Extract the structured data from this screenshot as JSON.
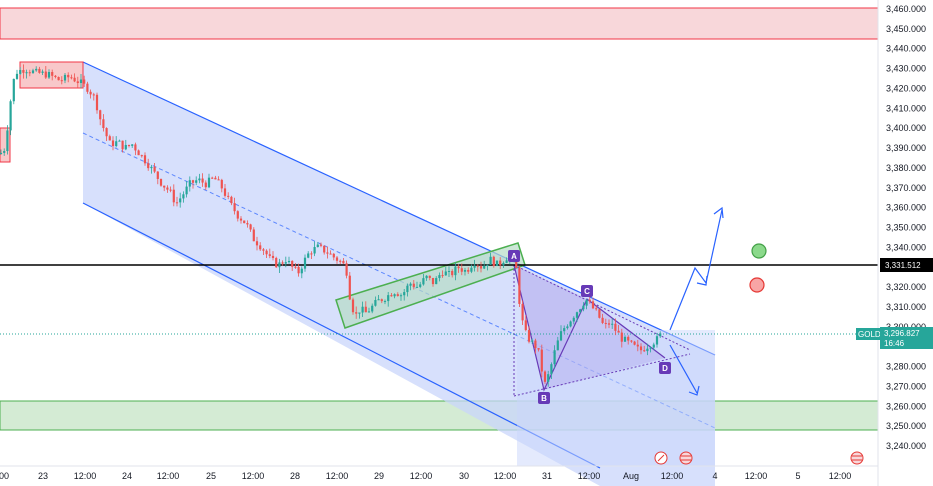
{
  "chart_data": {
    "type": "candlestick",
    "symbol": "GOLD",
    "last_price": "3,296.827",
    "countdown": "16:46",
    "hline_price": "3,331.512",
    "ylim": [
      3233,
      3464
    ],
    "y_ticks": [
      3460,
      3450,
      3440,
      3430,
      3420,
      3410,
      3400,
      3390,
      3380,
      3370,
      3360,
      3350,
      3340,
      3320,
      3310,
      3300,
      3280,
      3270,
      3260,
      3250,
      3240
    ],
    "x_ticks": [
      "00",
      "23",
      "12:00",
      "24",
      "12:00",
      "25",
      "12:00",
      "28",
      "12:00",
      "29",
      "12:00",
      "30",
      "12:00",
      "31",
      "12:00",
      "Aug",
      "12:00",
      "4",
      "12:00",
      "5",
      "12:00"
    ],
    "resistance_zone": [
      3446,
      3461
    ],
    "support_zone": [
      3248,
      3263
    ],
    "pattern_labels": [
      "A",
      "B",
      "C",
      "D"
    ],
    "colors": {
      "up": "#26a69a",
      "down": "#ef5350",
      "channel": "#2962ff",
      "support": "#4caf50",
      "resistance": "#f23645"
    },
    "close_path": [
      [
        0,
        3387
      ],
      [
        5,
        3390
      ],
      [
        10,
        3412
      ],
      [
        15,
        3428
      ],
      [
        25,
        3430
      ],
      [
        35,
        3428
      ],
      [
        48,
        3427
      ],
      [
        60,
        3424
      ],
      [
        70,
        3426
      ],
      [
        80,
        3423
      ],
      [
        88,
        3420
      ],
      [
        95,
        3415
      ],
      [
        100,
        3405
      ],
      [
        105,
        3398
      ],
      [
        110,
        3392
      ],
      [
        118,
        3393
      ],
      [
        125,
        3390
      ],
      [
        132,
        3392
      ],
      [
        140,
        3387
      ],
      [
        148,
        3382
      ],
      [
        155,
        3377
      ],
      [
        162,
        3372
      ],
      [
        170,
        3368
      ],
      [
        176,
        3362
      ],
      [
        182,
        3366
      ],
      [
        190,
        3372
      ],
      [
        198,
        3374
      ],
      [
        206,
        3372
      ],
      [
        214,
        3375
      ],
      [
        222,
        3370
      ],
      [
        230,
        3362
      ],
      [
        238,
        3356
      ],
      [
        246,
        3352
      ],
      [
        254,
        3344
      ],
      [
        262,
        3340
      ],
      [
        270,
        3334
      ],
      [
        278,
        3331
      ],
      [
        286,
        3334
      ],
      [
        292,
        3330
      ],
      [
        298,
        3327
      ],
      [
        304,
        3333
      ],
      [
        310,
        3338
      ],
      [
        318,
        3340
      ],
      [
        326,
        3338
      ],
      [
        334,
        3335
      ],
      [
        340,
        3333
      ],
      [
        346,
        3330
      ],
      [
        350,
        3315
      ],
      [
        355,
        3305
      ],
      [
        360,
        3309
      ],
      [
        366,
        3307
      ],
      [
        372,
        3310
      ],
      [
        378,
        3313
      ],
      [
        386,
        3315
      ],
      [
        394,
        3318
      ],
      [
        402,
        3316
      ],
      [
        410,
        3322
      ],
      [
        418,
        3320
      ],
      [
        426,
        3325
      ],
      [
        434,
        3322
      ],
      [
        442,
        3328
      ],
      [
        450,
        3326
      ],
      [
        458,
        3330
      ],
      [
        466,
        3328
      ],
      [
        474,
        3333
      ],
      [
        482,
        3330
      ],
      [
        490,
        3334
      ],
      [
        498,
        3331
      ],
      [
        506,
        3335
      ],
      [
        512,
        3336
      ],
      [
        516,
        3330
      ],
      [
        520,
        3310
      ],
      [
        524,
        3298
      ],
      [
        530,
        3293
      ],
      [
        536,
        3290
      ],
      [
        540,
        3285
      ],
      [
        544,
        3270
      ],
      [
        548,
        3275
      ],
      [
        552,
        3282
      ],
      [
        556,
        3290
      ],
      [
        562,
        3298
      ],
      [
        568,
        3302
      ],
      [
        574,
        3306
      ],
      [
        580,
        3310
      ],
      [
        586,
        3314
      ],
      [
        592,
        3310
      ],
      [
        598,
        3306
      ],
      [
        604,
        3300
      ],
      [
        610,
        3302
      ],
      [
        616,
        3298
      ],
      [
        622,
        3294
      ],
      [
        628,
        3292
      ],
      [
        634,
        3290
      ],
      [
        640,
        3288
      ],
      [
        646,
        3290
      ],
      [
        652,
        3292
      ],
      [
        658,
        3294
      ],
      [
        662,
        3297
      ]
    ]
  },
  "price_axis": {
    "symbol_badge": "GOLD",
    "last_price": "3,296.827",
    "countdown": "16:46",
    "hline_label": "3,331.512"
  }
}
